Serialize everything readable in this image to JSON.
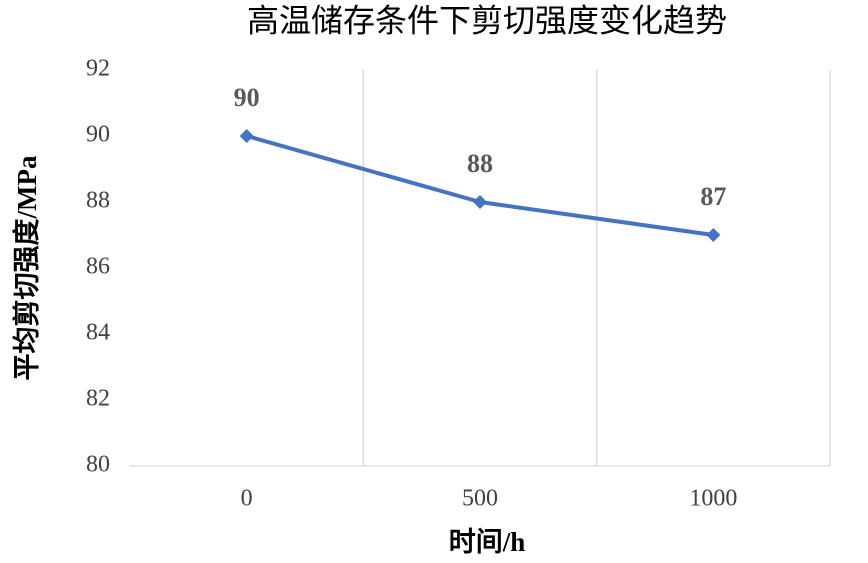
{
  "chart_data": {
    "type": "line",
    "title": "高温储存条件下剪切强度变化趋势",
    "x_label": "时间/h",
    "y_label": "平均剪切强度/MPa",
    "categories": [
      "0",
      "500",
      "1000"
    ],
    "values": [
      90,
      88,
      87
    ],
    "color": "#4472c4",
    "ylim": [
      80,
      92
    ],
    "yticks": [
      80,
      82,
      84,
      86,
      88,
      90,
      92
    ],
    "grid": "vertical",
    "data_labels": true
  }
}
